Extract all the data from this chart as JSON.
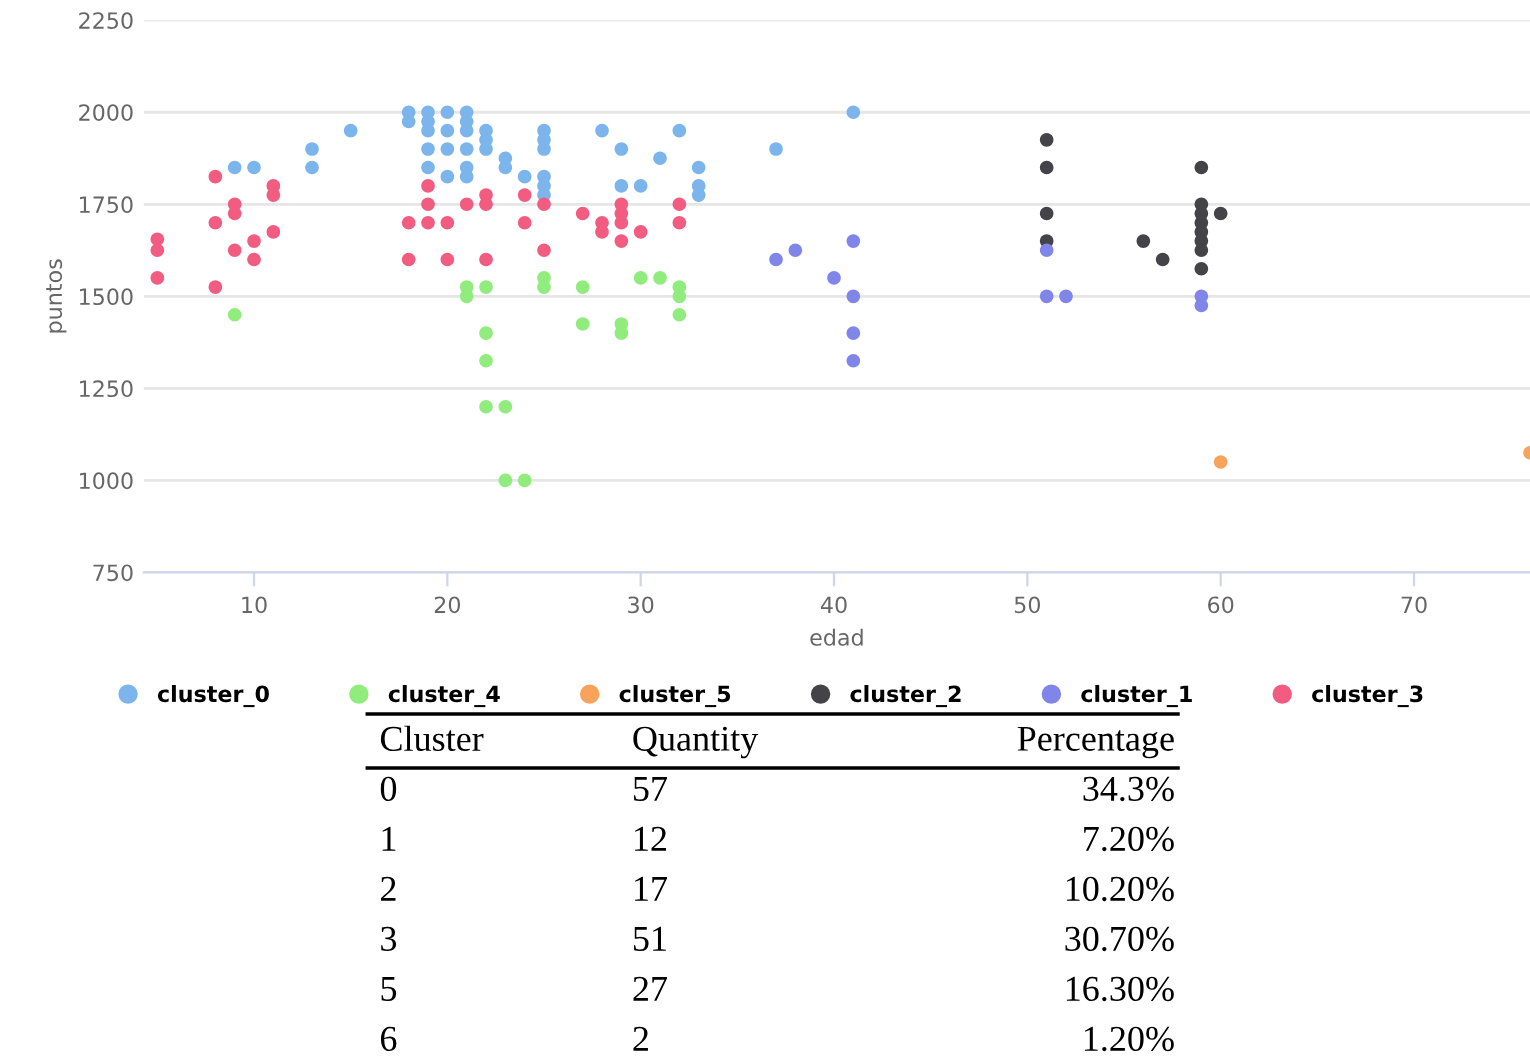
{
  "chart_data": {
    "type": "scatter",
    "xlabel": "edad",
    "ylabel": "puntos",
    "xlim": [
      4.3,
      76
    ],
    "xticks": [
      10,
      20,
      30,
      40,
      50,
      60,
      70
    ],
    "ylim": [
      750,
      2250
    ],
    "yticks": [
      750,
      1000,
      1250,
      1500,
      1750,
      2000,
      2250
    ],
    "grid": "y",
    "legend": "bottom",
    "marker": "circle",
    "series": [
      {
        "name": "cluster_0",
        "color": "#7cb5ec",
        "x": [
          9,
          10,
          13,
          13,
          15,
          18,
          18,
          19,
          19,
          19,
          19,
          19,
          20,
          20,
          20,
          20,
          21,
          21,
          21,
          21,
          21,
          21,
          22,
          22,
          22,
          23,
          23,
          24,
          25,
          25,
          25,
          25,
          25,
          25,
          28,
          29,
          29,
          30,
          31,
          32,
          33,
          33,
          33,
          37,
          41
        ],
        "values": [
          1850,
          1850,
          1900,
          1850,
          1950,
          2000,
          1975,
          2000,
          1975,
          1950,
          1900,
          1850,
          2000,
          1950,
          1900,
          1825,
          2000,
          1975,
          1950,
          1900,
          1850,
          1825,
          1950,
          1925,
          1900,
          1875,
          1850,
          1825,
          1950,
          1925,
          1900,
          1825,
          1800,
          1775,
          1950,
          1900,
          1800,
          1800,
          1875,
          1950,
          1850,
          1800,
          1775,
          1900,
          2000
        ]
      },
      {
        "name": "cluster_4",
        "color": "#90ed7d",
        "x": [
          9,
          21,
          21,
          22,
          22,
          22,
          22,
          23,
          23,
          24,
          25,
          25,
          27,
          27,
          29,
          29,
          30,
          31,
          32,
          32,
          32
        ],
        "values": [
          1450,
          1525,
          1500,
          1525,
          1400,
          1325,
          1200,
          1200,
          1000,
          1000,
          1550,
          1525,
          1525,
          1425,
          1425,
          1400,
          1550,
          1550,
          1525,
          1500,
          1450
        ]
      },
      {
        "name": "cluster_5",
        "color": "#f7a35c",
        "x": [
          60,
          76
        ],
        "values": [
          1050,
          1075
        ]
      },
      {
        "name": "cluster_2",
        "color": "#434348",
        "x": [
          51,
          51,
          51,
          51,
          56,
          57,
          59,
          59,
          59,
          59,
          59,
          59,
          59,
          59,
          60
        ],
        "values": [
          1925,
          1850,
          1725,
          1650,
          1650,
          1600,
          1850,
          1750,
          1725,
          1700,
          1675,
          1625,
          1575,
          1650,
          1725
        ]
      },
      {
        "name": "cluster_1",
        "color": "#8085e9",
        "x": [
          37,
          38,
          40,
          41,
          41,
          41,
          41,
          51,
          51,
          52,
          59,
          59
        ],
        "values": [
          1600,
          1625,
          1550,
          1650,
          1500,
          1400,
          1325,
          1625,
          1500,
          1500,
          1500,
          1475
        ]
      },
      {
        "name": "cluster_3",
        "color": "#f15c80",
        "x": [
          5,
          5,
          5,
          8,
          8,
          8,
          9,
          9,
          9,
          10,
          10,
          11,
          11,
          11,
          18,
          18,
          19,
          19,
          19,
          20,
          20,
          21,
          22,
          22,
          22,
          24,
          24,
          25,
          25,
          27,
          28,
          28,
          29,
          29,
          29,
          29,
          30,
          32,
          32
        ],
        "values": [
          1655,
          1625,
          1550,
          1825,
          1700,
          1525,
          1750,
          1725,
          1625,
          1650,
          1600,
          1800,
          1775,
          1675,
          1700,
          1600,
          1800,
          1750,
          1700,
          1700,
          1600,
          1750,
          1775,
          1750,
          1600,
          1775,
          1700,
          1750,
          1625,
          1725,
          1700,
          1675,
          1750,
          1725,
          1700,
          1650,
          1675,
          1750,
          1700
        ]
      }
    ],
    "annotations": [
      "Cluster",
      "Quantity",
      "Percentage",
      "0",
      "57",
      "34.3%",
      "1",
      "12",
      "7.20%",
      "2",
      "17",
      "10.20%",
      "3",
      "51",
      "30.70%",
      "5",
      "27",
      "16.30%",
      "6",
      "2",
      "1.20%"
    ]
  }
}
